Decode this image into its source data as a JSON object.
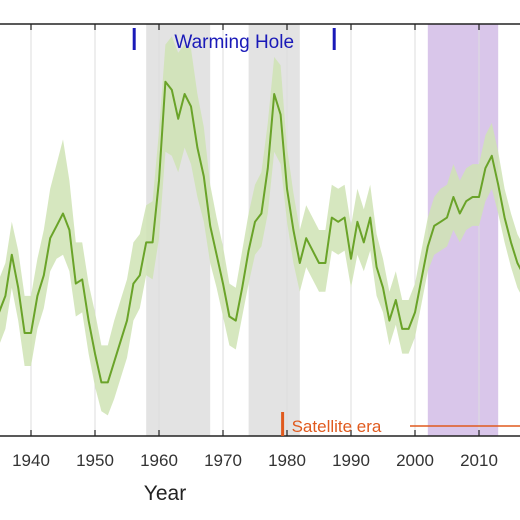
{
  "chart_data": {
    "type": "line",
    "title": "",
    "xlabel": "Year",
    "ylabel": "",
    "xlim": [
      1935,
      2017
    ],
    "ylim": [
      0,
      1
    ],
    "x_ticks": [
      1940,
      1950,
      1960,
      1970,
      1980,
      1990,
      2000,
      2010
    ],
    "grid": "vertical",
    "colors": {
      "line": "#6aa329",
      "band": "#cfe3b4",
      "gray_shade": "#e3e3e3",
      "purple_shade": "#d9c6ea",
      "warming": "#1a1ab8",
      "satellite": "#e05a1e"
    },
    "shaded_periods": [
      {
        "start": 1958,
        "end": 1968,
        "color": "gray"
      },
      {
        "start": 1974,
        "end": 1982,
        "color": "gray"
      },
      {
        "start": 2002,
        "end": 2013,
        "color": "purple"
      }
    ],
    "annotations": {
      "warming_hole": {
        "label": "Warming Hole",
        "start": 1958,
        "end": 1988
      },
      "satellite_era": {
        "label": "Satellite era",
        "start": 1979
      }
    },
    "series": [
      {
        "x": [
          1935,
          1936,
          1937,
          1938,
          1939,
          1940,
          1941,
          1942,
          1943,
          1944,
          1945,
          1946,
          1947,
          1948,
          1949,
          1950,
          1951,
          1952,
          1953,
          1954,
          1955,
          1956,
          1957,
          1958,
          1959,
          1960,
          1961,
          1962,
          1963,
          1964,
          1965,
          1966,
          1967,
          1968,
          1969,
          1970,
          1971,
          1972,
          1973,
          1974,
          1975,
          1976,
          1977,
          1978,
          1979,
          1980,
          1981,
          1982,
          1983,
          1984,
          1985,
          1986,
          1987,
          1988,
          1989,
          1990,
          1991,
          1992,
          1993,
          1994,
          1995,
          1996,
          1997,
          1998,
          1999,
          2000,
          2001,
          2002,
          2003,
          2004,
          2005,
          2006,
          2007,
          2008,
          2009,
          2010,
          2011,
          2012,
          2013,
          2014,
          2015,
          2016,
          2017
        ],
        "y": [
          0.3,
          0.34,
          0.44,
          0.36,
          0.25,
          0.25,
          0.34,
          0.39,
          0.48,
          0.51,
          0.54,
          0.5,
          0.37,
          0.38,
          0.28,
          0.2,
          0.13,
          0.13,
          0.18,
          0.23,
          0.28,
          0.37,
          0.39,
          0.47,
          0.47,
          0.62,
          0.86,
          0.84,
          0.77,
          0.83,
          0.8,
          0.7,
          0.63,
          0.51,
          0.44,
          0.37,
          0.29,
          0.28,
          0.36,
          0.45,
          0.52,
          0.54,
          0.65,
          0.83,
          0.78,
          0.6,
          0.5,
          0.42,
          0.48,
          0.45,
          0.42,
          0.42,
          0.53,
          0.52,
          0.53,
          0.43,
          0.52,
          0.47,
          0.53,
          0.41,
          0.36,
          0.28,
          0.33,
          0.26,
          0.26,
          0.3,
          0.38,
          0.46,
          0.51,
          0.52,
          0.53,
          0.58,
          0.54,
          0.57,
          0.58,
          0.58,
          0.65,
          0.68,
          0.61,
          0.53,
          0.47,
          0.42,
          0.39
        ],
        "lower": [
          0.22,
          0.26,
          0.36,
          0.28,
          0.17,
          0.17,
          0.26,
          0.31,
          0.4,
          0.43,
          0.44,
          0.4,
          0.29,
          0.3,
          0.2,
          0.12,
          0.06,
          0.05,
          0.09,
          0.14,
          0.19,
          0.28,
          0.31,
          0.39,
          0.38,
          0.48,
          0.69,
          0.68,
          0.64,
          0.7,
          0.66,
          0.58,
          0.52,
          0.42,
          0.36,
          0.29,
          0.22,
          0.21,
          0.29,
          0.37,
          0.44,
          0.46,
          0.54,
          0.69,
          0.66,
          0.52,
          0.42,
          0.35,
          0.41,
          0.38,
          0.35,
          0.35,
          0.45,
          0.44,
          0.45,
          0.36,
          0.44,
          0.4,
          0.45,
          0.34,
          0.3,
          0.22,
          0.27,
          0.2,
          0.2,
          0.24,
          0.32,
          0.4,
          0.44,
          0.45,
          0.46,
          0.5,
          0.47,
          0.5,
          0.51,
          0.51,
          0.57,
          0.6,
          0.54,
          0.47,
          0.41,
          0.36,
          0.33
        ],
        "upper": [
          0.38,
          0.42,
          0.52,
          0.45,
          0.34,
          0.34,
          0.43,
          0.5,
          0.6,
          0.66,
          0.72,
          0.62,
          0.47,
          0.47,
          0.37,
          0.3,
          0.22,
          0.22,
          0.28,
          0.33,
          0.38,
          0.47,
          0.49,
          0.56,
          0.57,
          0.74,
          0.95,
          0.97,
          0.93,
          0.95,
          0.94,
          0.83,
          0.75,
          0.61,
          0.53,
          0.46,
          0.37,
          0.36,
          0.45,
          0.54,
          0.61,
          0.64,
          0.76,
          0.92,
          0.9,
          0.7,
          0.59,
          0.5,
          0.56,
          0.53,
          0.5,
          0.5,
          0.61,
          0.6,
          0.61,
          0.51,
          0.6,
          0.55,
          0.61,
          0.49,
          0.43,
          0.35,
          0.4,
          0.33,
          0.33,
          0.37,
          0.45,
          0.53,
          0.58,
          0.6,
          0.61,
          0.66,
          0.62,
          0.65,
          0.66,
          0.66,
          0.73,
          0.76,
          0.69,
          0.6,
          0.54,
          0.49,
          0.46
        ]
      }
    ]
  }
}
